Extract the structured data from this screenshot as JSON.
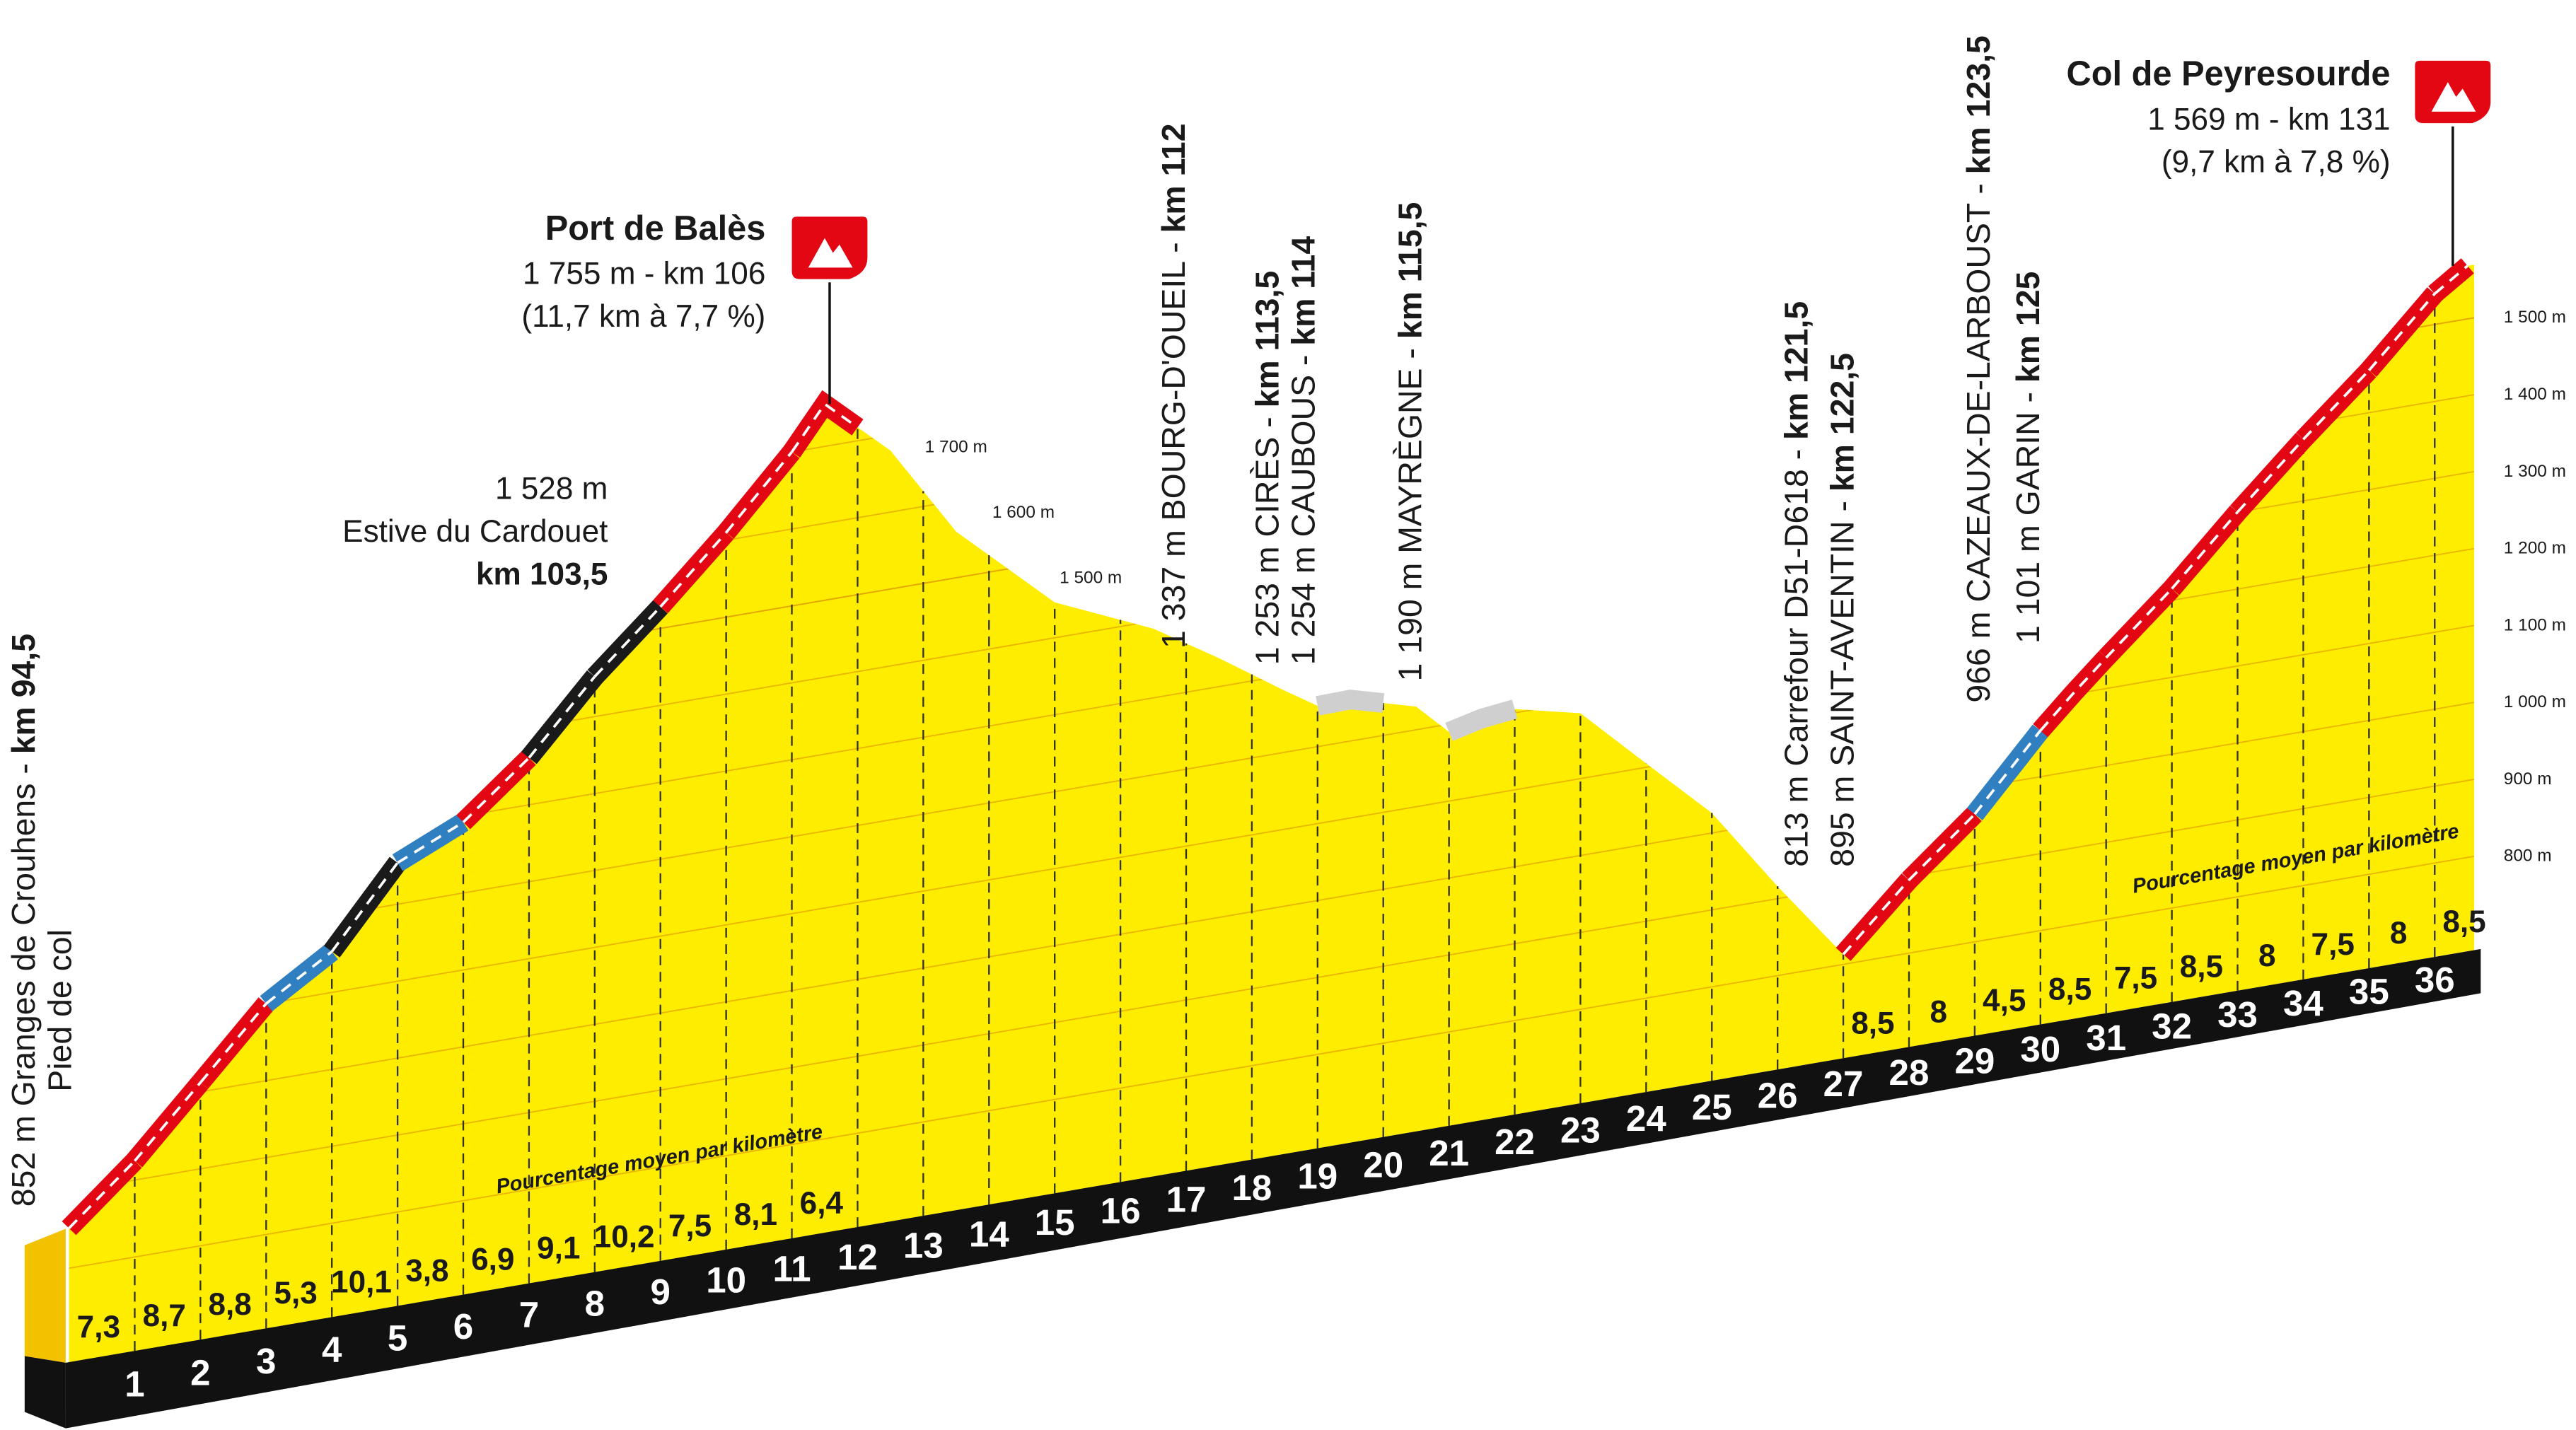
{
  "chart_data": {
    "type": "profile",
    "km_ticks": [
      1,
      2,
      3,
      4,
      5,
      6,
      7,
      8,
      9,
      10,
      11,
      12,
      13,
      14,
      15,
      16,
      17,
      18,
      19,
      20,
      21,
      22,
      23,
      24,
      25,
      26,
      27,
      28,
      29,
      30,
      31,
      32,
      33,
      34,
      35,
      36
    ],
    "profile": {
      "x": [
        0,
        1,
        2,
        3,
        4,
        5,
        6,
        7,
        8,
        9,
        10,
        11,
        11.5,
        12.5,
        13.5,
        15,
        16.5,
        17.5,
        18.5,
        19,
        19.5,
        20.5,
        21,
        21.5,
        22,
        23,
        24,
        25,
        26,
        27,
        28,
        29,
        30,
        30.5,
        31,
        32,
        33,
        34,
        35,
        36,
        36.5
      ],
      "values": [
        852,
        925,
        1012,
        1100,
        1153,
        1254,
        1292,
        1361,
        1452,
        1528,
        1610,
        1700,
        1755,
        1680,
        1560,
        1446,
        1390,
        1337,
        1280,
        1253,
        1254,
        1230,
        1190,
        1200,
        1205,
        1185,
        1105,
        1026,
        916,
        813,
        895,
        966,
        1060,
        1101,
        1140,
        1215,
        1300,
        1380,
        1455,
        1540,
        1569
      ]
    },
    "gradients": {
      "label": "Pourcentage moyen par kilomètre",
      "values": [
        7.3,
        8.7,
        8.8,
        5.3,
        10.1,
        3.8,
        6.9,
        9.1,
        10.2,
        7.5,
        8.1,
        6.4,
        null,
        null,
        null,
        null,
        null,
        null,
        null,
        null,
        null,
        null,
        null,
        null,
        null,
        null,
        null,
        8.5,
        8,
        4.5,
        8.5,
        7.5,
        8.5,
        8,
        7.5,
        8,
        8.5
      ],
      "value_labels": [
        "7,3",
        "8,7",
        "8,8",
        "5,3",
        "10,1",
        "3,8",
        "6,9",
        "9,1",
        "10,2",
        "7,5",
        "8,1",
        "6,4",
        null,
        null,
        null,
        null,
        null,
        null,
        null,
        null,
        null,
        null,
        null,
        null,
        null,
        null,
        null,
        "8,5",
        "8",
        "4,5",
        "8,5",
        "7,5",
        "8,5",
        "8",
        "7,5",
        "8",
        "8,5"
      ]
    },
    "segment_colors": [
      "#e30613",
      "#e30613",
      "#e30613",
      "#2f7fc1",
      "#1a1a1a",
      "#2f7fc1",
      "#e30613",
      "#1a1a1a",
      "#1a1a1a",
      "#e30613",
      "#e30613",
      "#e30613",
      null,
      null,
      null,
      null,
      null,
      null,
      null,
      "#cfcfcf",
      null,
      "#cfcfcf",
      null,
      null,
      null,
      null,
      null,
      "#e30613",
      "#e30613",
      "#2f7fc1",
      "#e30613",
      "#e30613",
      "#e30613",
      "#e30613",
      "#e30613",
      "#e30613",
      "#e30613"
    ],
    "yticks": [
      {
        "value": 800,
        "label": "800 m"
      },
      {
        "value": 900,
        "label": "900 m"
      },
      {
        "value": 1000,
        "label": "1 000 m"
      },
      {
        "value": 1100,
        "label": "1 100 m"
      },
      {
        "value": 1200,
        "label": "1 200 m"
      },
      {
        "value": 1300,
        "label": "1 300 m"
      },
      {
        "value": 1400,
        "label": "1 400 m"
      },
      {
        "value": 1500,
        "label": "1 500 m"
      }
    ],
    "inner_yticks": [
      {
        "value": 1700,
        "label": "1 700 m"
      },
      {
        "value": 1600,
        "label": "1 600 m"
      },
      {
        "value": 1500,
        "label": "1 500 m"
      }
    ],
    "colors": {
      "profile": "#ffed00",
      "band": "#111111"
    },
    "start": {
      "text": "852 m Granges de Crouhens - ",
      "km": "km 94,5",
      "note": "Pied de col"
    },
    "estive": {
      "alt": "1 528 m",
      "name": "Estive du Cardouet",
      "km": "km 103,5"
    },
    "summits": [
      {
        "name": "Port de Balès",
        "line1": "1 755 m - km 106",
        "line2": "(11,7 km à 7,7 %)"
      },
      {
        "name": "Col de Peyresourde",
        "line1": "1 569 m - km 131",
        "line2": "(9,7 km à 7,8 %)"
      }
    ],
    "waypoints": [
      {
        "text": "1 337 m BOURG-D'OUEIL - ",
        "km": "km 112"
      },
      {
        "text": "1 253 m CIRÈS - ",
        "km": "km 113,5"
      },
      {
        "text": "1 254 m CAUBOUS - ",
        "km": "km 114"
      },
      {
        "text": "1 190 m MAYRÈGNE - ",
        "km": "km 115,5"
      },
      {
        "text": "813 m Carrefour D51-D618 - ",
        "km": "km 121,5"
      },
      {
        "text": "895 m SAINT-AVENTIN - ",
        "km": "km 122,5"
      },
      {
        "text": "966 m CAZEAUX-DE-LARBOUST - ",
        "km": "km 123,5"
      },
      {
        "text": "1 101 m GARIN - ",
        "km": "km 125"
      }
    ]
  }
}
